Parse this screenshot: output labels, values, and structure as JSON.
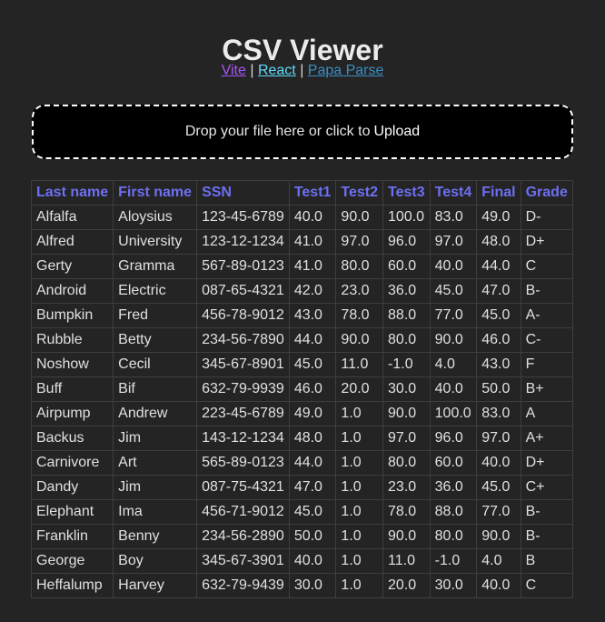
{
  "header": {
    "title": "CSV Viewer",
    "links": [
      {
        "label": "Vite",
        "color": "#a855f7"
      },
      {
        "label": "React",
        "color": "#61dafb"
      },
      {
        "label": "Papa Parse",
        "color": "#3b8fc4"
      }
    ],
    "separator": "|"
  },
  "dropzone": {
    "text": "Drop your file here or click to",
    "upload_label": "Upload"
  },
  "table": {
    "columns": [
      "Last name",
      "First name",
      "SSN",
      "Test1",
      "Test2",
      "Test3",
      "Test4",
      "Final",
      "Grade"
    ],
    "rows": [
      [
        "Alfalfa",
        "Aloysius",
        "123-45-6789",
        "40.0",
        "90.0",
        "100.0",
        "83.0",
        "49.0",
        "D-"
      ],
      [
        "Alfred",
        "University",
        "123-12-1234",
        "41.0",
        "97.0",
        "96.0",
        "97.0",
        "48.0",
        "D+"
      ],
      [
        "Gerty",
        "Gramma",
        "567-89-0123",
        "41.0",
        "80.0",
        "60.0",
        "40.0",
        "44.0",
        "C"
      ],
      [
        "Android",
        "Electric",
        "087-65-4321",
        "42.0",
        "23.0",
        "36.0",
        "45.0",
        "47.0",
        "B-"
      ],
      [
        "Bumpkin",
        "Fred",
        "456-78-9012",
        "43.0",
        "78.0",
        "88.0",
        "77.0",
        "45.0",
        "A-"
      ],
      [
        "Rubble",
        "Betty",
        "234-56-7890",
        "44.0",
        "90.0",
        "80.0",
        "90.0",
        "46.0",
        "C-"
      ],
      [
        "Noshow",
        "Cecil",
        "345-67-8901",
        "45.0",
        "11.0",
        "-1.0",
        "4.0",
        "43.0",
        "F"
      ],
      [
        "Buff",
        "Bif",
        "632-79-9939",
        "46.0",
        "20.0",
        "30.0",
        "40.0",
        "50.0",
        "B+"
      ],
      [
        "Airpump",
        "Andrew",
        "223-45-6789",
        "49.0",
        "1.0",
        "90.0",
        "100.0",
        "83.0",
        "A"
      ],
      [
        "Backus",
        "Jim",
        "143-12-1234",
        "48.0",
        "1.0",
        "97.0",
        "96.0",
        "97.0",
        "A+"
      ],
      [
        "Carnivore",
        "Art",
        "565-89-0123",
        "44.0",
        "1.0",
        "80.0",
        "60.0",
        "40.0",
        "D+"
      ],
      [
        "Dandy",
        "Jim",
        "087-75-4321",
        "47.0",
        "1.0",
        "23.0",
        "36.0",
        "45.0",
        "C+"
      ],
      [
        "Elephant",
        "Ima",
        "456-71-9012",
        "45.0",
        "1.0",
        "78.0",
        "88.0",
        "77.0",
        "B-"
      ],
      [
        "Franklin",
        "Benny",
        "234-56-2890",
        "50.0",
        "1.0",
        "90.0",
        "80.0",
        "90.0",
        "B-"
      ],
      [
        "George",
        "Boy",
        "345-67-3901",
        "40.0",
        "1.0",
        "11.0",
        "-1.0",
        "4.0",
        "B"
      ],
      [
        "Heffalump",
        "Harvey",
        "632-79-9439",
        "30.0",
        "1.0",
        "20.0",
        "30.0",
        "40.0",
        "C"
      ]
    ]
  }
}
